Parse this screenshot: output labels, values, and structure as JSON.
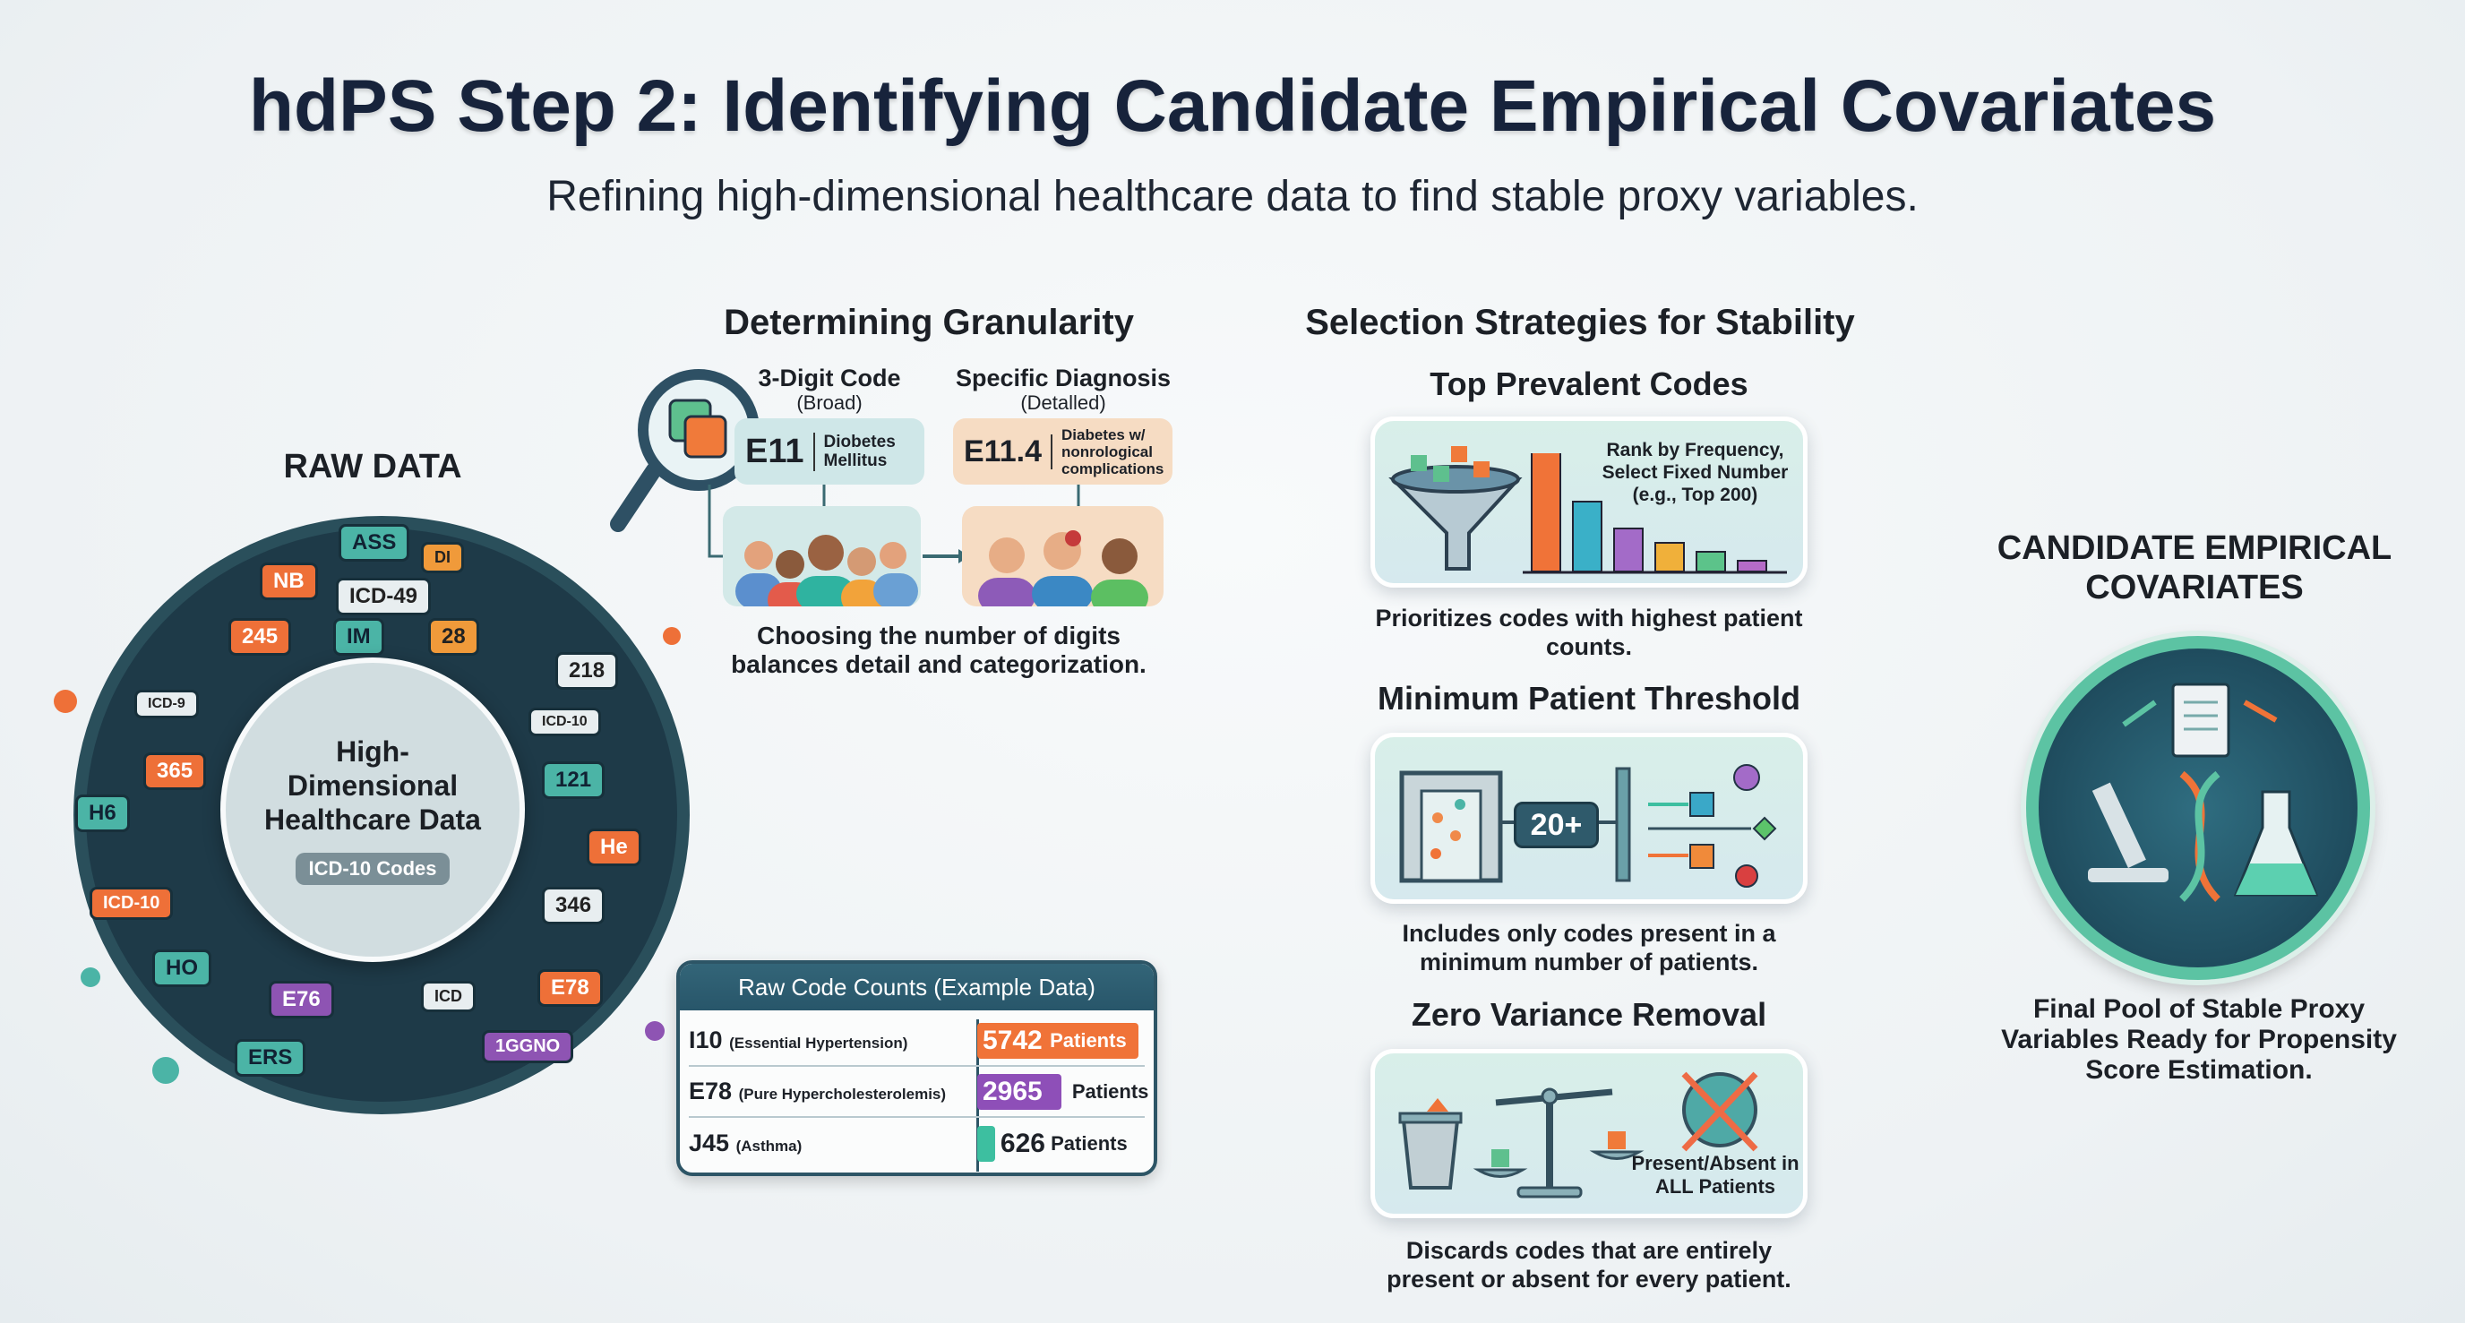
{
  "header": {
    "title": "hdPS Step 2: Identifying Candidate Empirical Covariates",
    "subtitle": "Refining high-dimensional healthcare data to find stable proxy variables."
  },
  "raw_data": {
    "label": "RAW DATA",
    "center_title": "High-Dimensional Healthcare Data",
    "center_pill": "ICD-10 Codes",
    "tags": [
      "ASS",
      "DI",
      "NB",
      "ICD-49",
      "28",
      "245",
      "218",
      "IM",
      "H6",
      "365",
      "121",
      "He",
      "346",
      "ICD-10",
      "HO",
      "E76",
      "E78",
      "ERS",
      "ICD",
      "ICD-9",
      "ICD-10",
      "1GGNO"
    ]
  },
  "granularity": {
    "heading": "Determining Granularity",
    "broad": {
      "title": "3-Digit Code",
      "subtitle": "(Broad)",
      "code": "E11",
      "desc": "Diobetes Mellitus"
    },
    "detailed": {
      "title": "Specific Diagnosis",
      "subtitle": "(Detalled)",
      "code": "E11.4",
      "desc": "Diabetes w/ nonrological complications"
    },
    "caption": "Choosing the number of digits balances detail and categorization."
  },
  "raw_counts": {
    "title": "Raw Code Counts (Example Data)",
    "rows": [
      {
        "code": "I10",
        "name": "(Essential Hypertension)",
        "count": "5742",
        "unit": "Patients",
        "color": "#f07338",
        "fraction": 1.0
      },
      {
        "code": "E78",
        "name": "(Pure Hypercholesterolemis)",
        "count": "2965",
        "unit": "Patients",
        "color": "#8e4fb8",
        "fraction": 0.52
      },
      {
        "code": "J45",
        "name": "(Asthma)",
        "count": "626",
        "unit": "Patients",
        "color": "#3dbfa0",
        "fraction": 0.11
      }
    ]
  },
  "selection": {
    "heading": "Selection Strategies for Stability",
    "strategies": [
      {
        "title": "Top Prevalent Codes",
        "card_text": "Rank by Frequency, Select Fixed Number (e.g., Top 200)",
        "caption": "Prioritizes codes with highest patient counts."
      },
      {
        "title": "Minimum Patient Threshold",
        "card_text": "20+",
        "caption": "Includes only codes present in a minimum number of patients."
      },
      {
        "title": "Zero Variance Removal",
        "card_text": "Present/Absent in ALL Patients",
        "caption": "Discards codes that are entirely present or absent for every patient."
      }
    ]
  },
  "candidate": {
    "heading": "CANDIDATE EMPIRICAL COVARIATES",
    "caption": "Final Pool of Stable Proxy Variables Ready for Propensity Score Estimation."
  },
  "colors": {
    "navy": "#17233b",
    "orange": "#ee7038",
    "teal": "#4bb4a6",
    "purple": "#8e54b3",
    "green": "#5cc3a3"
  }
}
